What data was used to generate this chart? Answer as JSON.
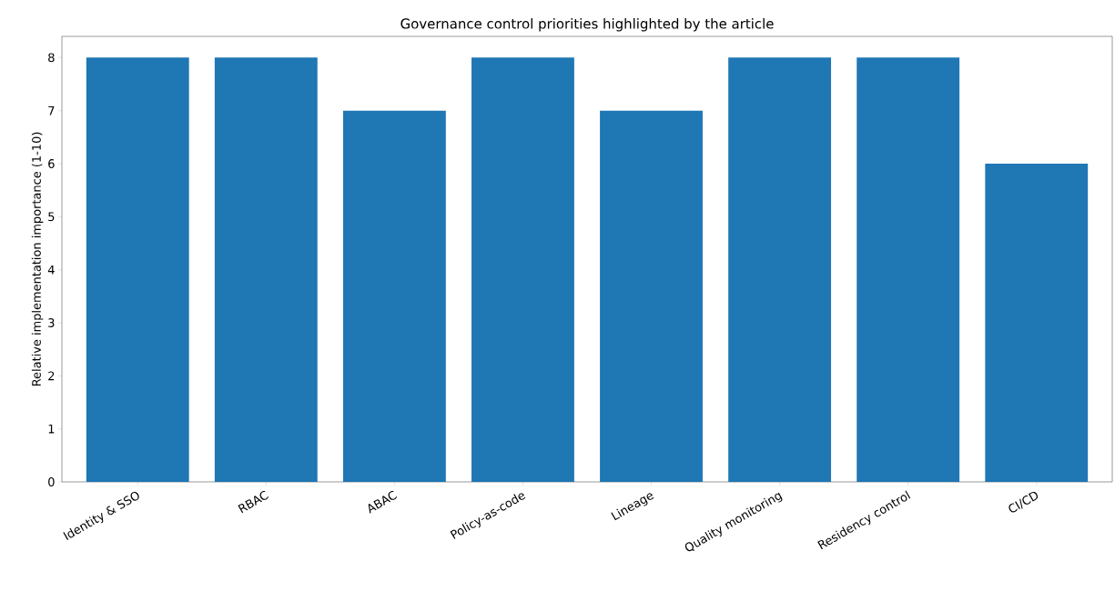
{
  "chart_data": {
    "type": "bar",
    "title": "Governance control priorities highlighted by the article",
    "ylabel": "Relative implementation importance (1-10)",
    "categories": [
      "Identity & SSO",
      "RBAC",
      "ABAC",
      "Policy-as-code",
      "Lineage",
      "Quality monitoring",
      "Residency control",
      "CI/CD"
    ],
    "values": [
      8,
      8,
      7,
      8,
      7,
      8,
      8,
      6
    ],
    "color": "#1f77b4",
    "ylim": [
      0,
      8.4
    ],
    "yticks": [
      0,
      1,
      2,
      3,
      4,
      5,
      6,
      7,
      8
    ],
    "grid": false
  }
}
